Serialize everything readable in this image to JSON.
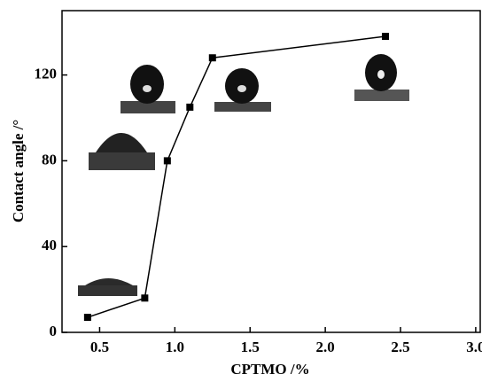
{
  "chart_data": {
    "type": "line",
    "x_label": "CPTMO /%",
    "y_label": "Contact angle /°",
    "x": [
      0.42,
      0.8,
      0.95,
      1.1,
      1.25,
      2.4
    ],
    "series": [
      {
        "name": "Contact angle",
        "color": "#000000",
        "values": [
          7,
          16,
          80,
          105,
          128,
          138
        ]
      }
    ],
    "xlim": [
      0.25,
      3.03
    ],
    "ylim": [
      0,
      150
    ],
    "xticks": [
      0.5,
      {
        "value": 1,
        "label": "1.0"
      },
      1.5,
      {
        "value": 2,
        "label": "2.0"
      },
      2.5,
      {
        "value": 3,
        "label": "3.0"
      }
    ],
    "yticks": [
      0,
      40,
      80,
      120
    ],
    "grid": false,
    "marker": "square"
  }
}
